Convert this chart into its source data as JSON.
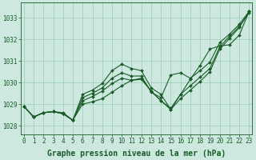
{
  "title": "Graphe pression niveau de la mer (hPa)",
  "background_color": "#cce8df",
  "grid_color": "#99ccbb",
  "line_color": "#1a5c28",
  "x_ticks": [
    0,
    1,
    2,
    3,
    4,
    5,
    6,
    7,
    8,
    9,
    10,
    11,
    12,
    13,
    14,
    15,
    16,
    17,
    18,
    19,
    20,
    21,
    22,
    23
  ],
  "y_ticks": [
    1028,
    1029,
    1030,
    1031,
    1032,
    1033
  ],
  "ylim": [
    1027.6,
    1033.7
  ],
  "xlim": [
    -0.3,
    23.3
  ],
  "series": [
    [
      1028.9,
      1028.4,
      1028.6,
      1028.65,
      1028.6,
      1028.25,
      1029.0,
      1029.1,
      1029.25,
      1029.55,
      1029.85,
      1030.1,
      1030.15,
      1029.6,
      1029.15,
      1028.75,
      1029.25,
      1029.65,
      1030.05,
      1030.5,
      1031.55,
      1032.05,
      1032.55,
      1033.3
    ],
    [
      1028.9,
      1028.4,
      1028.6,
      1028.65,
      1028.55,
      1028.25,
      1029.15,
      1029.35,
      1029.6,
      1029.95,
      1030.2,
      1030.1,
      1030.2,
      1029.6,
      1029.15,
      1028.8,
      1029.45,
      1029.85,
      1030.25,
      1030.65,
      1031.65,
      1032.15,
      1032.6,
      1033.25
    ],
    [
      1028.9,
      1028.4,
      1028.6,
      1028.65,
      1028.55,
      1028.25,
      1029.3,
      1029.5,
      1029.75,
      1030.2,
      1030.45,
      1030.3,
      1030.3,
      1029.55,
      1029.3,
      1030.35,
      1030.45,
      1030.2,
      1030.55,
      1030.95,
      1031.85,
      1032.25,
      1032.7,
      1033.3
    ],
    [
      1028.9,
      1028.4,
      1028.6,
      1028.65,
      1028.55,
      1028.25,
      1029.45,
      1029.65,
      1029.95,
      1030.55,
      1030.85,
      1030.65,
      1030.55,
      1029.75,
      1029.45,
      1028.75,
      1029.45,
      1030.15,
      1030.8,
      1031.55,
      1031.7,
      1031.75,
      1032.2,
      1033.3
    ]
  ],
  "marker": "D",
  "marker_size": 2.0,
  "line_width": 0.8,
  "title_fontsize": 7,
  "tick_fontsize": 5.5,
  "tick_color": "#1a5c28",
  "axis_color": "#1a5c28"
}
